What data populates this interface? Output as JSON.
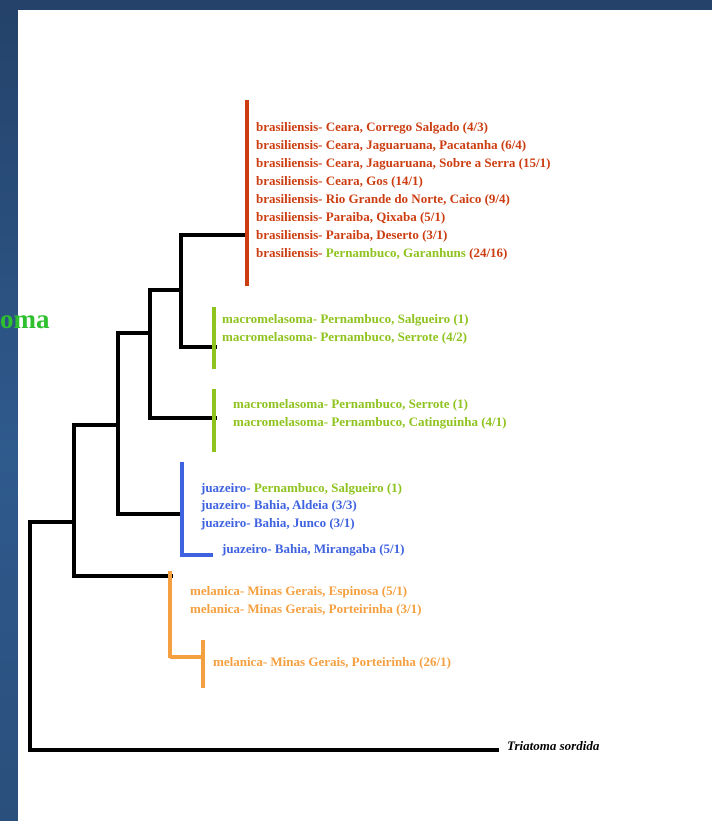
{
  "colors": {
    "brasiliensis": "#cc3d11",
    "macromelasoma": "#8fc31f",
    "juazeiro": "#3f63e0",
    "melanica": "#f5a040",
    "outgroup": "#000000",
    "side_word": "#2fc02f"
  },
  "side_word": "oma",
  "clades": {
    "brasiliensis": {
      "species": "brasiliensis-",
      "labels": [
        {
          "locality": "Ceara, Corrego Salgado (4/3)",
          "locality_color": "brasiliensis"
        },
        {
          "locality": "Ceara, Jaguaruana, Pacatanha (6/4)",
          "locality_color": "brasiliensis"
        },
        {
          "locality": "Ceara, Jaguaruana, Sobre a Serra (15/1)",
          "locality_color": "brasiliensis"
        },
        {
          "locality": "Ceara, Gos (14/1)",
          "locality_color": "brasiliensis"
        },
        {
          "locality": "Rio Grande do Norte, Caico (9/4)",
          "locality_color": "brasiliensis"
        },
        {
          "locality": "Paraiba, Qixaba (5/1)",
          "locality_color": "brasiliensis"
        },
        {
          "locality": "Paraiba, Deserto (3/1)",
          "locality_color": "brasiliensis"
        },
        {
          "locality": "Pernambuco, Garanhuns",
          "suffix": " (24/16)",
          "locality_color": "macromelasoma"
        }
      ]
    },
    "macromelasoma_a": {
      "species": "macromelasoma-",
      "labels": [
        {
          "locality": "Pernambuco, Salgueiro (1)",
          "locality_color": "macromelasoma"
        },
        {
          "locality": "Pernambuco, Serrote (4/2)",
          "locality_color": "macromelasoma"
        }
      ]
    },
    "macromelasoma_b": {
      "species": "macromelasoma-",
      "labels": [
        {
          "locality": "Pernambuco, Serrote (1)",
          "locality_color": "macromelasoma"
        },
        {
          "locality": "Pernambuco, Catinguinha (4/1)",
          "locality_color": "macromelasoma"
        }
      ]
    },
    "juazeiro": {
      "species": "juazeiro-",
      "labels": [
        {
          "locality": "Pernambuco, Salgueiro (1)",
          "locality_color": "macromelasoma"
        },
        {
          "locality": "Bahia, Aldeia (3/3)",
          "locality_color": "juazeiro"
        },
        {
          "locality": "Bahia, Junco (3/1)",
          "locality_color": "juazeiro"
        },
        {
          "locality": "Bahia, Mirangaba (5/1)",
          "locality_color": "juazeiro"
        }
      ]
    },
    "melanica": {
      "species": "melanica-",
      "labels": [
        {
          "locality": "Minas Gerais, Espinosa (5/1)",
          "locality_color": "melanica"
        },
        {
          "locality": "Minas Gerais, Porteirinha (3/1)",
          "locality_color": "melanica"
        },
        {
          "locality": "Minas Gerais, Porteirinha (26/1)",
          "locality_color": "melanica"
        }
      ]
    }
  },
  "outgroup": "Triatoma sordida"
}
